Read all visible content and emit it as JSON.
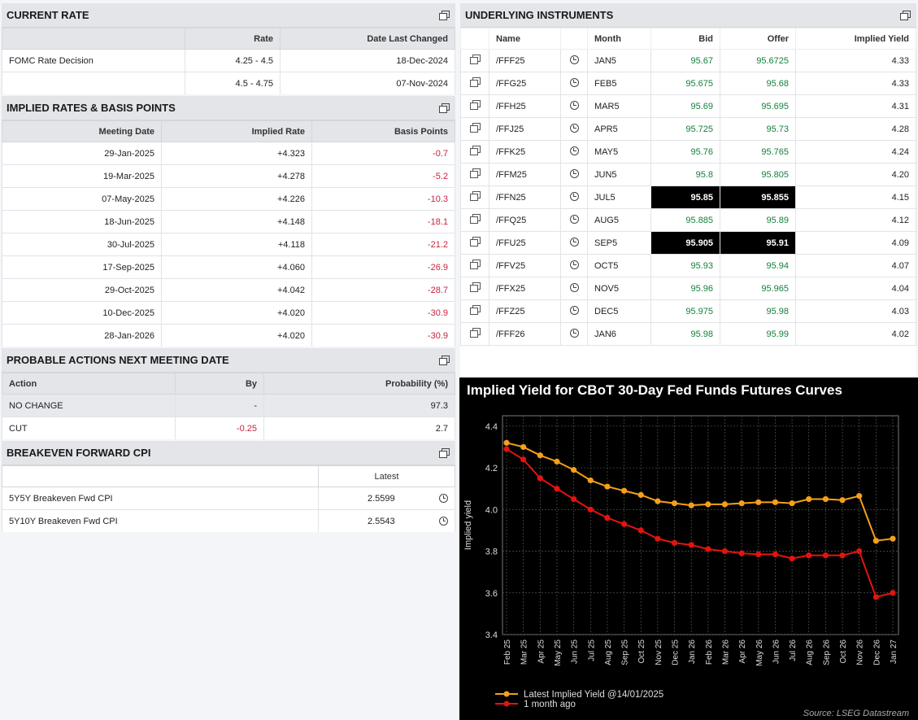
{
  "current_rate": {
    "title": "CURRENT RATE",
    "headers": [
      "",
      "Rate",
      "Date Last Changed"
    ],
    "rows": [
      [
        "FOMC Rate Decision",
        "4.25 - 4.5",
        "18-Dec-2024"
      ],
      [
        "",
        "4.5 - 4.75",
        "07-Nov-2024"
      ]
    ]
  },
  "implied_rates": {
    "title": "IMPLIED RATES & BASIS POINTS",
    "headers": [
      "Meeting Date",
      "Implied Rate",
      "Basis Points"
    ],
    "rows": [
      [
        "29-Jan-2025",
        "+4.323",
        "-0.7"
      ],
      [
        "19-Mar-2025",
        "+4.278",
        "-5.2"
      ],
      [
        "07-May-2025",
        "+4.226",
        "-10.3"
      ],
      [
        "18-Jun-2025",
        "+4.148",
        "-18.1"
      ],
      [
        "30-Jul-2025",
        "+4.118",
        "-21.2"
      ],
      [
        "17-Sep-2025",
        "+4.060",
        "-26.9"
      ],
      [
        "29-Oct-2025",
        "+4.042",
        "-28.7"
      ],
      [
        "10-Dec-2025",
        "+4.020",
        "-30.9"
      ],
      [
        "28-Jan-2026",
        "+4.020",
        "-30.9"
      ]
    ]
  },
  "probable_actions": {
    "title": "PROBABLE ACTIONS NEXT MEETING DATE",
    "headers": [
      "Action",
      "By",
      "Probability (%)"
    ],
    "rows": [
      [
        "NO CHANGE",
        "-",
        "97.3"
      ],
      [
        "CUT",
        "-0.25",
        "2.7"
      ]
    ]
  },
  "breakeven": {
    "title": "BREAKEVEN FORWARD CPI",
    "headers": [
      "",
      "Latest"
    ],
    "rows": [
      [
        "5Y5Y Breakeven Fwd CPI",
        "2.5599"
      ],
      [
        "5Y10Y Breakeven Fwd CPI",
        "2.5543"
      ]
    ]
  },
  "underlying": {
    "title": "UNDERLYING INSTRUMENTS",
    "headers": [
      "Name",
      "Month",
      "Bid",
      "Offer",
      "Implied Yield"
    ],
    "rows": [
      [
        "/FFF25",
        "JAN5",
        "95.67",
        "95.6725",
        "4.33"
      ],
      [
        "/FFG25",
        "FEB5",
        "95.675",
        "95.68",
        "4.33"
      ],
      [
        "/FFH25",
        "MAR5",
        "95.69",
        "95.695",
        "4.31"
      ],
      [
        "/FFJ25",
        "APR5",
        "95.725",
        "95.73",
        "4.28"
      ],
      [
        "/FFK25",
        "MAY5",
        "95.76",
        "95.765",
        "4.24"
      ],
      [
        "/FFM25",
        "JUN5",
        "95.8",
        "95.805",
        "4.20"
      ],
      [
        "/FFN25",
        "JUL5",
        "95.85",
        "95.855",
        "4.15"
      ],
      [
        "/FFQ25",
        "AUG5",
        "95.885",
        "95.89",
        "4.12"
      ],
      [
        "/FFU25",
        "SEP5",
        "95.905",
        "95.91",
        "4.09"
      ],
      [
        "/FFV25",
        "OCT5",
        "95.93",
        "95.94",
        "4.07"
      ],
      [
        "/FFX25",
        "NOV5",
        "95.96",
        "95.965",
        "4.04"
      ],
      [
        "/FFZ25",
        "DEC5",
        "95.975",
        "95.98",
        "4.03"
      ],
      [
        "/FFF26",
        "JAN6",
        "95.98",
        "95.99",
        "4.02"
      ]
    ],
    "highlighted_rows": [
      6,
      8
    ]
  },
  "chart_data": {
    "type": "line",
    "title": "Implied Yield for CBoT 30-Day Fed Funds Futures Curves",
    "ylabel": "Implied yield",
    "xlabel": "",
    "ylim": [
      3.4,
      4.45
    ],
    "yticks": [
      3.4,
      3.6,
      3.8,
      4.0,
      4.2,
      4.4
    ],
    "grid": true,
    "legend_position": "bottom-left",
    "source": "Source: LSEG Datastream",
    "categories": [
      "Feb 25",
      "Mar 25",
      "Apr 25",
      "May 25",
      "Jun 25",
      "Jul 25",
      "Aug 25",
      "Sep 25",
      "Oct 25",
      "Nov 25",
      "Dec 25",
      "Jan 26",
      "Feb 26",
      "Mar 26",
      "Apr 26",
      "May 26",
      "Jun 26",
      "Jul 26",
      "Aug 26",
      "Sep 26",
      "Oct 26",
      "Nov 26",
      "Dec 26",
      "Jan 27"
    ],
    "series": [
      {
        "name": "Latest Implied Yield @14/01/2025",
        "color": "#f5a01a",
        "values": [
          4.32,
          4.3,
          4.26,
          4.23,
          4.19,
          4.14,
          4.11,
          4.09,
          4.07,
          4.04,
          4.03,
          4.02,
          4.025,
          4.025,
          4.03,
          4.035,
          4.035,
          4.03,
          4.05,
          4.05,
          4.045,
          4.065,
          3.85,
          3.86
        ]
      },
      {
        "name": "1 month ago",
        "color": "#e3140e",
        "values": [
          4.29,
          4.24,
          4.15,
          4.1,
          4.05,
          4.0,
          3.96,
          3.93,
          3.9,
          3.86,
          3.84,
          3.83,
          3.81,
          3.8,
          3.79,
          3.785,
          3.785,
          3.765,
          3.78,
          3.78,
          3.78,
          3.8,
          3.58,
          3.6
        ]
      }
    ]
  }
}
